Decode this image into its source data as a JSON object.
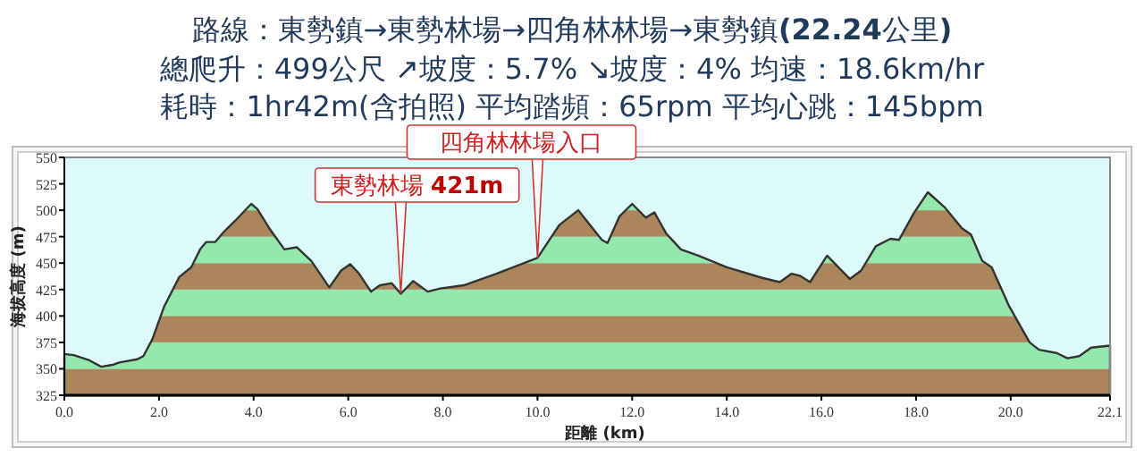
{
  "chart_data": {
    "type": "area",
    "title": "路線：東勢鎮→東勢林場→四角林林場→東勢鎮(22.24公里)",
    "subtitle": "總爬升：499公尺 ↗坡度：5.7% ↘坡度：4% 均速：18.6km/hr\n耗時：1hr42m(含拍照) 平均踏頻：65rpm 平均心跳：145bpm",
    "xlabel": "距離 (km)",
    "ylabel": "海拔高度 (m)",
    "series": [
      {
        "color": "#333333",
        "x": [
          0,
          0.2,
          0.53,
          0.78,
          1.04,
          1.16,
          1.54,
          1.67,
          1.86,
          2.11,
          2.43,
          2.68,
          2.87,
          3.0,
          3.19,
          3.38,
          3.63,
          3.95,
          4.08,
          4.33,
          4.65,
          4.91,
          5.22,
          5.6,
          5.85,
          6.04,
          6.23,
          6.48,
          6.67,
          6.92,
          7.11,
          7.37,
          7.68,
          7.94,
          8.44,
          9.13,
          10.0,
          10.46,
          10.86,
          11.36,
          11.48,
          11.73,
          12.0,
          12.29,
          12.47,
          12.72,
          13.03,
          13.4,
          14.0,
          14.75,
          15.12,
          15.37,
          15.55,
          15.76,
          16.12,
          16.6,
          16.84,
          17.15,
          17.46,
          17.64,
          17.95,
          18.25,
          18.6,
          18.97,
          19.16,
          19.4,
          19.6,
          19.97,
          20.4,
          20.6,
          20.97,
          21.2,
          21.45,
          21.7,
          22.1
        ],
        "values": [
          364,
          363,
          358,
          352,
          354,
          356,
          359,
          362,
          378,
          409,
          437,
          446,
          463,
          470,
          470,
          480,
          491,
          506,
          501,
          483,
          463,
          465,
          452,
          427,
          443,
          449,
          440,
          423,
          429,
          431,
          421,
          433,
          423,
          426,
          429,
          440,
          455,
          486,
          500,
          472,
          469,
          494,
          506,
          493,
          498,
          478,
          463,
          457,
          446,
          436,
          432,
          440,
          438,
          432,
          457,
          435,
          443,
          466,
          473,
          472,
          497,
          517,
          503,
          483,
          477,
          452,
          446,
          409,
          375,
          368,
          365,
          360,
          362,
          370,
          372
        ]
      }
    ],
    "xlim": [
      0,
      22.1
    ],
    "xticks": [
      {
        "value": 0,
        "label": "0.0"
      },
      {
        "value": 2,
        "label": "2.0"
      },
      {
        "value": 4,
        "label": "4.0"
      },
      {
        "value": 6,
        "label": "6.0"
      },
      {
        "value": 8,
        "label": "8.0"
      },
      {
        "value": 10,
        "label": "10.0"
      },
      {
        "value": 12,
        "label": "12.0"
      },
      {
        "value": 14,
        "label": "14.0"
      },
      {
        "value": 16,
        "label": "16.0"
      },
      {
        "value": 18,
        "label": "18.0"
      },
      {
        "value": 20,
        "label": "20.0"
      },
      22.1
    ],
    "ylim": [
      325,
      550
    ],
    "yticks": [
      325,
      350,
      375,
      400,
      425,
      450,
      475,
      500,
      525,
      550
    ],
    "bands": [
      {
        "axis": "y",
        "from": 325,
        "to": 350,
        "color": "#b08a5c"
      },
      {
        "axis": "y",
        "from": 350,
        "to": 375,
        "color": "#98f0b4"
      },
      {
        "axis": "y",
        "from": 375,
        "to": 400,
        "color": "#b08a5c"
      },
      {
        "axis": "y",
        "from": 400,
        "to": 425,
        "color": "#98f0b4"
      },
      {
        "axis": "y",
        "from": 425,
        "to": 450,
        "color": "#b08a5c"
      },
      {
        "axis": "y",
        "from": 450,
        "to": 475,
        "color": "#98f0b4"
      },
      {
        "axis": "y",
        "from": 475,
        "to": 500,
        "color": "#b08a5c"
      },
      {
        "axis": "y",
        "from": 500,
        "to": 525,
        "color": "#98f0b4"
      }
    ],
    "annotations": [
      {
        "text": "四角林林場入口",
        "x": 10.0,
        "y": 455
      },
      {
        "text": "東勢林場 421m",
        "x": 7.11,
        "y": 421
      }
    ],
    "grid": false
  }
}
